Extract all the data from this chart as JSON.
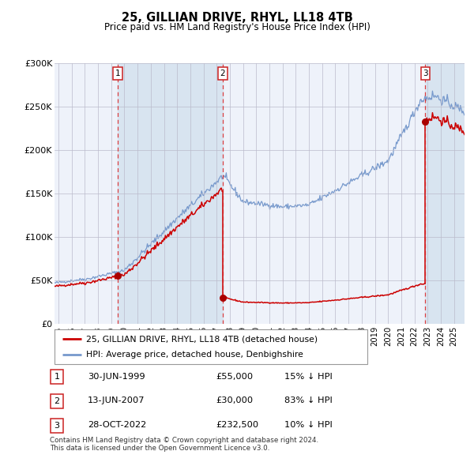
{
  "title": "25, GILLIAN DRIVE, RHYL, LL18 4TB",
  "subtitle": "Price paid vs. HM Land Registry's House Price Index (HPI)",
  "background_color": "#ffffff",
  "plot_bg_color": "#eef2fa",
  "grid_color": "#bbbbcc",
  "hpi_color": "#7799cc",
  "price_color": "#cc0000",
  "sale_marker_color": "#aa0000",
  "dashed_line_color": "#dd2222",
  "shade_color": "#d8e4f0",
  "transactions": [
    {
      "label": "1",
      "date_num": 1999.5,
      "price": 55000,
      "date_str": "30-JUN-1999",
      "pct": "15%",
      "dir": "↓"
    },
    {
      "label": "2",
      "date_num": 2007.44,
      "price": 30000,
      "date_str": "13-JUN-2007",
      "pct": "83%",
      "dir": "↓"
    },
    {
      "label": "3",
      "date_num": 2022.83,
      "price": 232500,
      "date_str": "28-OCT-2022",
      "pct": "10%",
      "dir": "↓"
    }
  ],
  "legend_label_price": "25, GILLIAN DRIVE, RHYL, LL18 4TB (detached house)",
  "legend_label_hpi": "HPI: Average price, detached house, Denbighshire",
  "footnote1": "Contains HM Land Registry data © Crown copyright and database right 2024.",
  "footnote2": "This data is licensed under the Open Government Licence v3.0.",
  "ylim": [
    0,
    300000
  ],
  "xlim_start": 1994.7,
  "xlim_end": 2025.8,
  "yticks": [
    0,
    50000,
    100000,
    150000,
    200000,
    250000,
    300000
  ],
  "ylabels": [
    "£0",
    "£50K",
    "£100K",
    "£150K",
    "£200K",
    "£250K",
    "£300K"
  ]
}
